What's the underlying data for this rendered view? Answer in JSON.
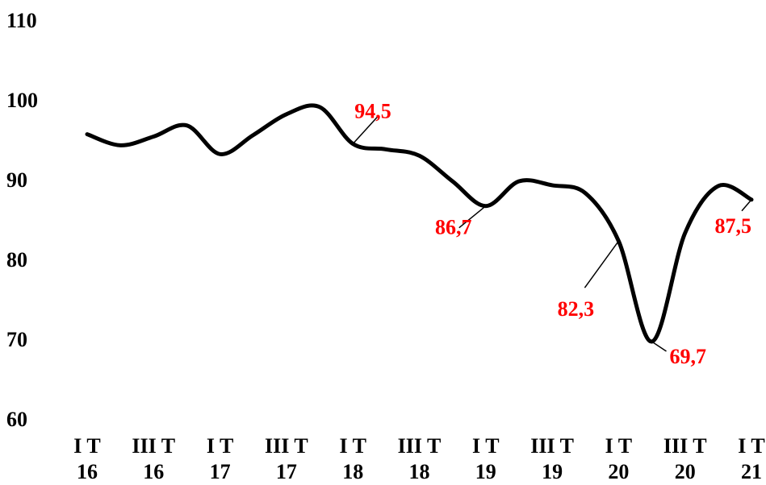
{
  "chart_data": {
    "type": "line",
    "title": "",
    "xlabel": "",
    "ylabel": "",
    "ylim": [
      60,
      110
    ],
    "yticks": [
      60,
      70,
      80,
      90,
      100,
      110
    ],
    "grid": false,
    "legend": "none",
    "colors": {
      "line": "#000000",
      "label": "#ff0000",
      "axis_text": "#000000"
    },
    "x_tick_labels": [
      {
        "line1": "I T",
        "line2": "16"
      },
      {
        "line1": "III T",
        "line2": "16"
      },
      {
        "line1": "I T",
        "line2": "17"
      },
      {
        "line1": "III T",
        "line2": "17"
      },
      {
        "line1": "I T",
        "line2": "18"
      },
      {
        "line1": "III T",
        "line2": "18"
      },
      {
        "line1": "I T",
        "line2": "19"
      },
      {
        "line1": "III T",
        "line2": "19"
      },
      {
        "line1": "I T",
        "line2": "20"
      },
      {
        "line1": "III T",
        "line2": "20"
      },
      {
        "line1": "I T",
        "line2": "21"
      }
    ],
    "series": [
      {
        "values": [
          95.7,
          94.3,
          95.4,
          96.8,
          93.2,
          95.6,
          98.2,
          99.1,
          94.5,
          93.8,
          93.0,
          89.8,
          86.7,
          89.8,
          89.3,
          88.3,
          82.3,
          69.7,
          83.3,
          89.2,
          87.5
        ]
      }
    ],
    "data_labels": [
      {
        "index": 8,
        "text": "94,5"
      },
      {
        "index": 12,
        "text": "86,7"
      },
      {
        "index": 16,
        "text": "82,3"
      },
      {
        "index": 17,
        "text": "69,7"
      },
      {
        "index": 20,
        "text": "87,5"
      }
    ]
  }
}
